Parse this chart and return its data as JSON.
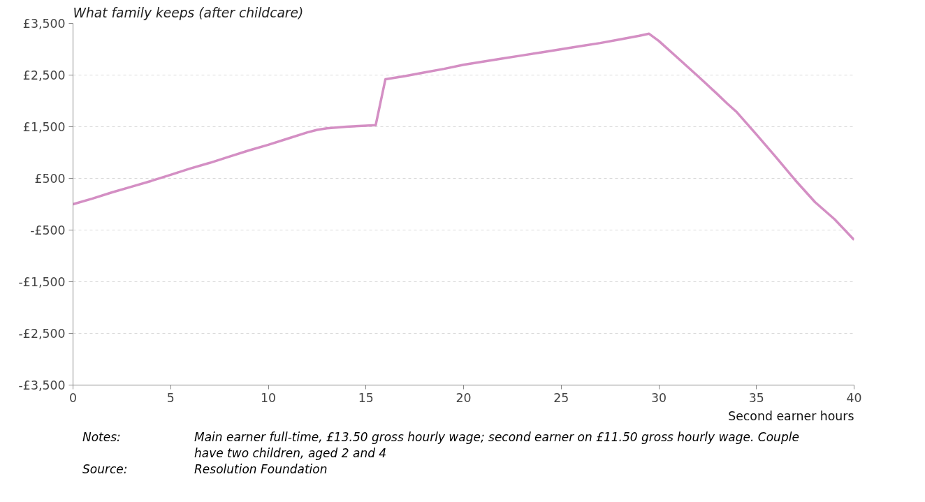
{
  "chart_data": {
    "type": "line",
    "ylabel": "What family keeps (after childcare)",
    "xlabel": "Second earner hours",
    "x": [
      0,
      1,
      2,
      3,
      4,
      5,
      6,
      7,
      8,
      9,
      10,
      11,
      12,
      12.5,
      13,
      14,
      15,
      15.5,
      16,
      17,
      18,
      19,
      20,
      21,
      22,
      23,
      24,
      25,
      26,
      27,
      28,
      29,
      29.5,
      30,
      31,
      32,
      33,
      33.5,
      34,
      35,
      36,
      37,
      38,
      39,
      40
    ],
    "series": [
      {
        "color": "#d48fc4",
        "values": [
          0,
          110,
          230,
          340,
          450,
          570,
          690,
          800,
          920,
          1040,
          1150,
          1270,
          1390,
          1440,
          1470,
          1500,
          1520,
          1530,
          2420,
          2480,
          2550,
          2620,
          2700,
          2760,
          2820,
          2880,
          2940,
          3000,
          3060,
          3120,
          3190,
          3260,
          3300,
          3160,
          2820,
          2480,
          2130,
          1950,
          1780,
          1350,
          910,
          460,
          40,
          -290,
          -690
        ]
      }
    ],
    "xlim": [
      0,
      40
    ],
    "xticks": [
      0,
      5,
      10,
      15,
      20,
      25,
      30,
      35,
      40
    ],
    "ylim": [
      -3500,
      3500
    ],
    "yticks": [
      {
        "value": -3500,
        "label": "-£3,500"
      },
      {
        "value": -2500,
        "label": "-£2,500"
      },
      {
        "value": -1500,
        "label": "-£1,500"
      },
      {
        "value": -500,
        "label": "-£500"
      },
      {
        "value": 500,
        "label": "£500"
      },
      {
        "value": 1500,
        "label": "£1,500"
      },
      {
        "value": 2500,
        "label": "£2,500"
      },
      {
        "value": 3500,
        "label": "£3,500"
      }
    ],
    "grid": "y",
    "line_style": "solid",
    "marker": "none",
    "annotations": [
      "Notes:",
      "Main earner full-time, £13.50 gross hourly wage; second earner on £11.50 gross hourly wage. Couple have two children, aged 2 and 4",
      "Source:",
      "Resolution Foundation"
    ]
  }
}
